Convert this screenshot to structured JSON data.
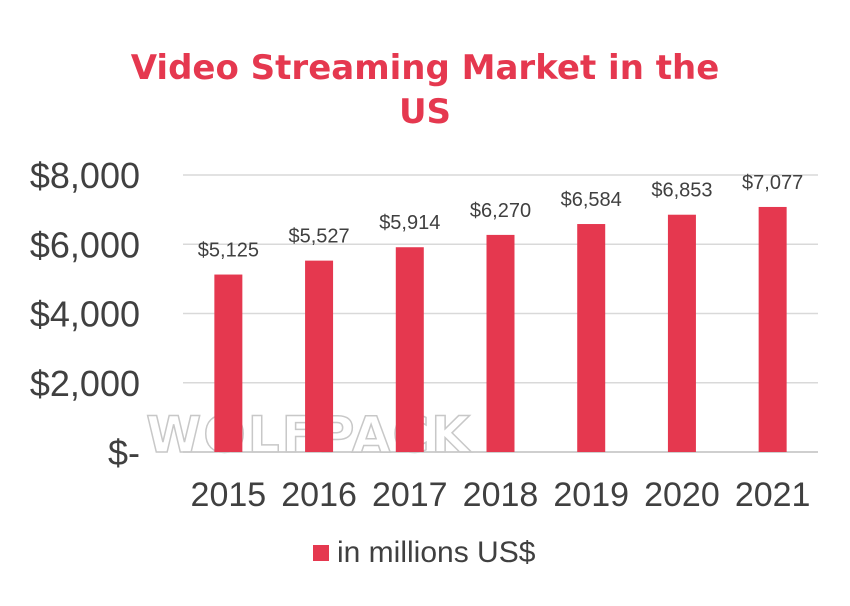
{
  "chart_data": {
    "type": "bar",
    "title_lines": [
      "Video Streaming Market in the",
      "US"
    ],
    "categories": [
      "2015",
      "2016",
      "2017",
      "2018",
      "2019",
      "2020",
      "2021"
    ],
    "values": [
      5125,
      5527,
      5914,
      6270,
      6584,
      6853,
      7077
    ],
    "data_labels": [
      "$5,125",
      "$5,527",
      "$5,914",
      "$6,270",
      "$6,584",
      "$6,853",
      "$7,077"
    ],
    "y_ticks": [
      {
        "value": 0,
        "label": "$-"
      },
      {
        "value": 2000,
        "label": "$2,000"
      },
      {
        "value": 4000,
        "label": "$4,000"
      },
      {
        "value": 6000,
        "label": "$6,000"
      },
      {
        "value": 8000,
        "label": "$8,000"
      }
    ],
    "ylim": [
      0,
      8000
    ],
    "grid": true,
    "legend": {
      "label": "in millions US$",
      "position": "bottom"
    },
    "watermark": "WOLFPACK",
    "colors": {
      "bar": "#e5384f",
      "title": "#e5384f",
      "grid": "#d9d9d9",
      "text": "#404040"
    }
  }
}
